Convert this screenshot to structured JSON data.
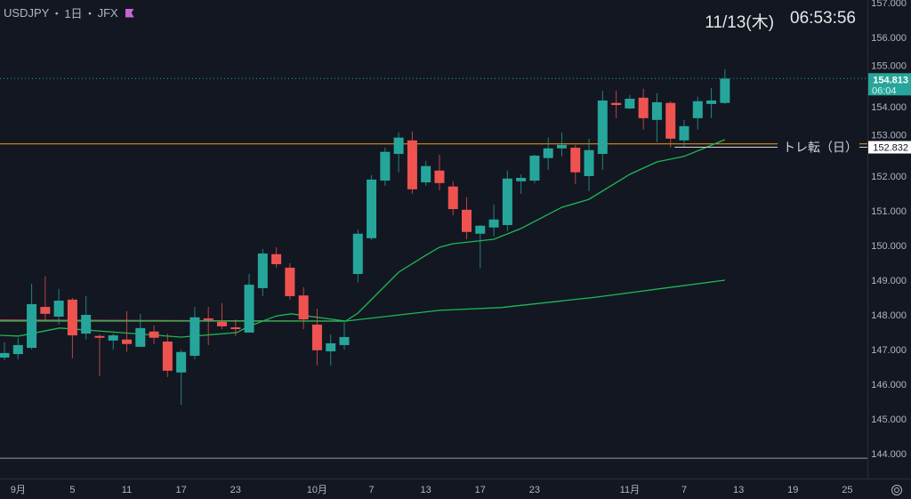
{
  "header": {
    "symbol": "USDJPY",
    "sep1": "・",
    "interval": "1日",
    "sep2": "・",
    "exchange": "JFX",
    "flag_color": "#c864d6"
  },
  "clock": {
    "date": "11/13(木)",
    "time": "06:53:56"
  },
  "colors": {
    "bg": "#131722",
    "up": "#26a69a",
    "down": "#ef5350",
    "ma_green": "#1db954",
    "ma_red": "#e0524f",
    "level": "#f59d0b",
    "hline": "#d1d4dc"
  },
  "chart_data": {
    "type": "candlestick",
    "symbol": "USDJPY",
    "ylim": [
      143.9,
      157.1
    ],
    "y_ticks": [
      "157.000",
      "156.000",
      "155.000",
      "154.000",
      "153.000",
      "152.000",
      "151.000",
      "150.000",
      "149.000",
      "148.000",
      "147.000",
      "146.000",
      "145.000",
      "144.000"
    ],
    "x_ticks": [
      {
        "label": "9月",
        "index": 1
      },
      {
        "label": "5",
        "index": 5
      },
      {
        "label": "11",
        "index": 9
      },
      {
        "label": "17",
        "index": 13
      },
      {
        "label": "23",
        "index": 17
      },
      {
        "label": "10月",
        "index": 23
      },
      {
        "label": "7",
        "index": 27
      },
      {
        "label": "13",
        "index": 31
      },
      {
        "label": "17",
        "index": 35
      },
      {
        "label": "23",
        "index": 39
      },
      {
        "label": "11月",
        "index": 46
      },
      {
        "label": "7",
        "index": 50
      },
      {
        "label": "13",
        "index": 54
      },
      {
        "label": "19",
        "index": 58
      },
      {
        "label": "25",
        "index": 62
      }
    ],
    "ohlc": [
      [
        146.77,
        147.21,
        146.7,
        146.9
      ],
      [
        146.87,
        147.34,
        146.72,
        147.13
      ],
      [
        147.05,
        148.9,
        147.0,
        148.31
      ],
      [
        148.23,
        149.11,
        147.85,
        148.03
      ],
      [
        147.95,
        148.75,
        147.72,
        148.41
      ],
      [
        148.44,
        148.49,
        146.75,
        147.41
      ],
      [
        147.46,
        148.54,
        147.29,
        148.0
      ],
      [
        147.39,
        147.44,
        146.23,
        147.34
      ],
      [
        147.26,
        147.46,
        147.0,
        147.41
      ],
      [
        147.29,
        148.11,
        146.93,
        147.16
      ],
      [
        147.08,
        148.03,
        147.08,
        147.62
      ],
      [
        147.52,
        147.7,
        147.16,
        147.34
      ],
      [
        147.23,
        147.46,
        146.21,
        146.39
      ],
      [
        146.34,
        147.0,
        145.41,
        146.93
      ],
      [
        146.82,
        148.23,
        146.72,
        147.93
      ],
      [
        147.9,
        148.23,
        147.13,
        147.85
      ],
      [
        147.8,
        148.34,
        147.59,
        147.67
      ],
      [
        147.64,
        147.87,
        147.39,
        147.59
      ],
      [
        147.49,
        149.18,
        147.49,
        148.87
      ],
      [
        148.77,
        149.9,
        148.54,
        149.77
      ],
      [
        149.75,
        149.95,
        149.36,
        149.46
      ],
      [
        149.36,
        149.49,
        148.44,
        148.54
      ],
      [
        148.56,
        148.8,
        147.59,
        147.87
      ],
      [
        147.72,
        148.18,
        146.54,
        146.98
      ],
      [
        146.95,
        147.44,
        146.54,
        147.18
      ],
      [
        147.13,
        147.8,
        147.0,
        147.36
      ],
      [
        149.18,
        150.46,
        148.93,
        150.34
      ],
      [
        150.21,
        152.03,
        150.16,
        151.9
      ],
      [
        151.87,
        152.82,
        151.72,
        152.7
      ],
      [
        152.64,
        153.26,
        152.11,
        153.11
      ],
      [
        153.03,
        153.29,
        151.49,
        151.62
      ],
      [
        151.82,
        152.44,
        151.72,
        152.29
      ],
      [
        152.16,
        152.62,
        151.59,
        151.8
      ],
      [
        151.7,
        151.85,
        150.87,
        151.05
      ],
      [
        151.03,
        151.39,
        150.18,
        150.39
      ],
      [
        150.34,
        150.59,
        149.34,
        150.57
      ],
      [
        150.52,
        151.18,
        150.26,
        150.75
      ],
      [
        150.59,
        152.16,
        150.41,
        151.93
      ],
      [
        151.85,
        152.05,
        151.49,
        151.95
      ],
      [
        151.87,
        152.62,
        151.8,
        152.59
      ],
      [
        152.52,
        153.11,
        152.18,
        152.8
      ],
      [
        152.8,
        153.26,
        152.57,
        152.9
      ],
      [
        152.82,
        152.9,
        151.77,
        152.11
      ],
      [
        152.0,
        153.08,
        151.57,
        152.75
      ],
      [
        152.64,
        154.46,
        152.18,
        154.18
      ],
      [
        154.11,
        154.46,
        153.67,
        154.05
      ],
      [
        153.95,
        154.34,
        153.93,
        154.23
      ],
      [
        154.26,
        154.52,
        153.34,
        153.67
      ],
      [
        153.62,
        154.39,
        152.98,
        154.13
      ],
      [
        154.11,
        154.16,
        152.82,
        153.08
      ],
      [
        153.03,
        153.62,
        152.85,
        153.44
      ],
      [
        153.67,
        154.29,
        153.34,
        154.16
      ],
      [
        154.08,
        154.54,
        153.67,
        154.18
      ],
      [
        154.11,
        155.08,
        154.08,
        154.81
      ]
    ],
    "ma_short": [
      [
        -0.33,
        147.41
      ],
      [
        1.05,
        147.39
      ],
      [
        4.06,
        147.62
      ],
      [
        13,
        147.36
      ],
      [
        17.1,
        147.49
      ],
      [
        17.8,
        147.64
      ],
      [
        20,
        147.97
      ],
      [
        21.1,
        148.03
      ],
      [
        25.1,
        147.82
      ],
      [
        26,
        148.05
      ],
      [
        29,
        149.23
      ],
      [
        31,
        149.72
      ],
      [
        32,
        149.95
      ],
      [
        33,
        150.05
      ],
      [
        36,
        150.18
      ],
      [
        38,
        150.49
      ],
      [
        41,
        151.1
      ],
      [
        43,
        151.33
      ],
      [
        46,
        152.05
      ],
      [
        48,
        152.41
      ],
      [
        50,
        152.57
      ],
      [
        53,
        153.05
      ]
    ],
    "ma_red": [
      [
        -0.33,
        147.85
      ],
      [
        25.1,
        147.82
      ]
    ],
    "ma_long": [
      [
        -0.33,
        147.82
      ],
      [
        25.1,
        147.82
      ],
      [
        32,
        148.13
      ],
      [
        36.5,
        148.21
      ],
      [
        43.5,
        148.51
      ],
      [
        53,
        149.0
      ]
    ],
    "level_line": {
      "price": 152.93
    },
    "trend_line": {
      "price": 152.832,
      "start_index": 49.3,
      "label": "トレ転（日）",
      "price_label": "152.832"
    },
    "last_price": {
      "price": 154.813,
      "label": "154.813",
      "countdown": "06:04"
    },
    "bottom_line": {
      "price": 143.87
    }
  }
}
